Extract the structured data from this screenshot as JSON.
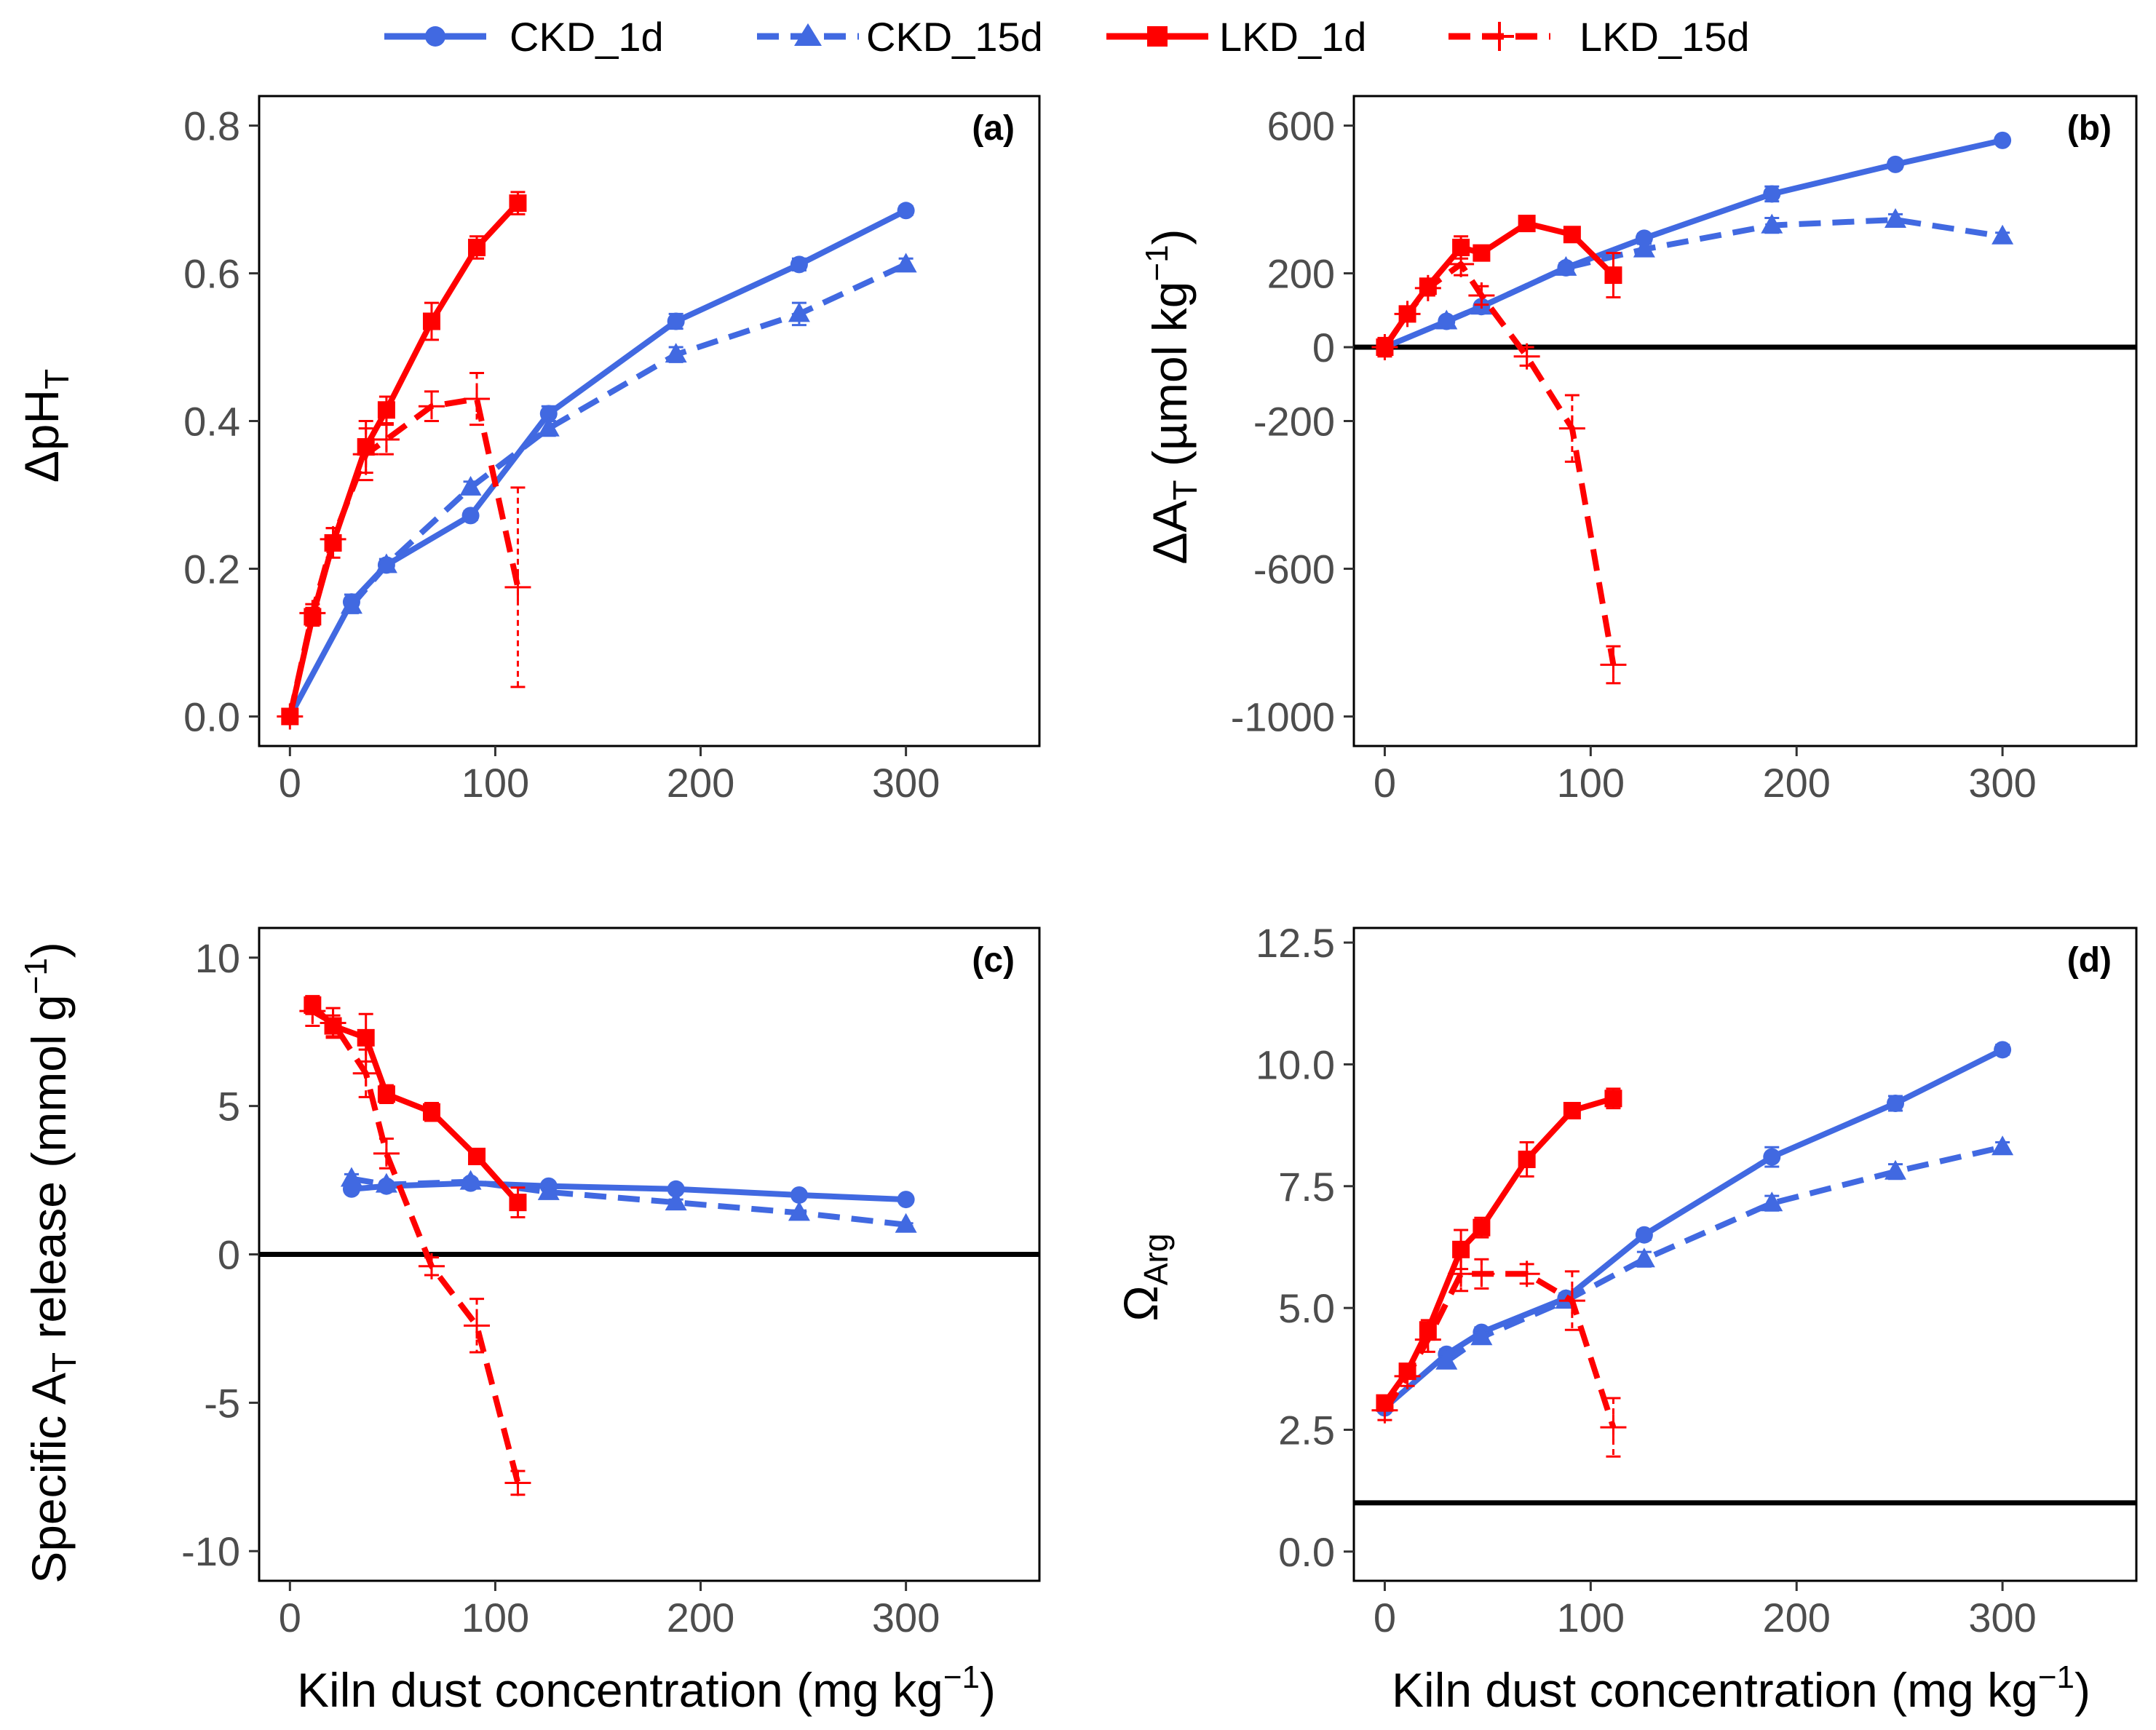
{
  "legend": {
    "entries": [
      {
        "key": "ckd1",
        "label": "CKD_1d"
      },
      {
        "key": "ckd15",
        "label": "CKD_15d"
      },
      {
        "key": "lkd1",
        "label": "LKD_1d"
      },
      {
        "key": "lkd15",
        "label": "LKD_15d"
      }
    ]
  },
  "colors": {
    "ckd": "#4169E1",
    "lkd": "#FF0000",
    "axis": "#000000",
    "tick_text": "#4d4d4d"
  },
  "x_axis_title": {
    "main": "Kiln dust concentration (mg kg",
    "sup": "−1",
    "close": ")"
  },
  "chart_data": [
    {
      "panel": "a",
      "type": "line",
      "tag": "(a)",
      "ylabel": "ΔpH_T",
      "xlim": [
        -15,
        365
      ],
      "ylim": [
        -0.04,
        0.84
      ],
      "xticks": [
        0,
        100,
        200,
        300
      ],
      "xtick_labels": [
        "0",
        "100",
        "200",
        "300"
      ],
      "yticks": [
        0.0,
        0.2,
        0.4,
        0.6,
        0.8
      ],
      "ytick_labels": [
        "0.0",
        "0.2",
        "0.4",
        "0.6",
        "0.8"
      ],
      "hline": null,
      "series": [
        {
          "name": "CKD_1d",
          "x": [
            0,
            30,
            47,
            88,
            126,
            188,
            248,
            300
          ],
          "y": [
            0.0,
            0.155,
            0.205,
            0.272,
            0.41,
            0.535,
            0.612,
            0.685
          ],
          "err": [
            0,
            0.01,
            0.008,
            0.006,
            0.01,
            0.01,
            0.008,
            0.006
          ]
        },
        {
          "name": "CKD_15d",
          "x": [
            30,
            47,
            88,
            126,
            188,
            248,
            300
          ],
          "y": [
            0.15,
            0.205,
            0.31,
            0.39,
            0.49,
            0.545,
            0.612
          ],
          "err": [
            0.01,
            0.008,
            0.008,
            0.01,
            0.01,
            0.015,
            0.008
          ]
        },
        {
          "name": "LKD_1d",
          "x": [
            0,
            11,
            21,
            37,
            47,
            69,
            91,
            111
          ],
          "y": [
            0.0,
            0.135,
            0.235,
            0.365,
            0.415,
            0.535,
            0.635,
            0.695
          ],
          "err": [
            0.01,
            0.012,
            0.02,
            0.035,
            0.018,
            0.025,
            0.015,
            0.015
          ]
        },
        {
          "name": "LKD_15d",
          "x": [
            0,
            11,
            21,
            37,
            47,
            69,
            91,
            111
          ],
          "y": [
            0.0,
            0.14,
            0.24,
            0.355,
            0.375,
            0.42,
            0.43,
            0.175
          ],
          "err": [
            0.01,
            0.012,
            0.015,
            0.035,
            0.02,
            0.02,
            0.035,
            0.135
          ]
        }
      ]
    },
    {
      "panel": "b",
      "type": "line",
      "tag": "(b)",
      "ylabel": "ΔA_T (µmol kg^−1)",
      "xlim": [
        -15,
        365
      ],
      "ylim": [
        -1080,
        680
      ],
      "xticks": [
        0,
        100,
        200,
        300
      ],
      "xtick_labels": [
        "0",
        "100",
        "200",
        "300"
      ],
      "yticks": [
        -1000,
        -600,
        -200,
        0,
        200,
        600
      ],
      "ytick_labels": [
        "-1000",
        "-600",
        "-200",
        "0",
        "200",
        "600"
      ],
      "hline": 0,
      "series": [
        {
          "name": "CKD_1d",
          "x": [
            0,
            30,
            47,
            88,
            126,
            188,
            248,
            300
          ],
          "y": [
            0,
            70,
            110,
            215,
            295,
            415,
            495,
            560
          ],
          "err": [
            0,
            10,
            10,
            12,
            12,
            20,
            12,
            10
          ]
        },
        {
          "name": "CKD_15d",
          "x": [
            30,
            47,
            88,
            126,
            188,
            248,
            300
          ],
          "y": [
            70,
            110,
            215,
            265,
            330,
            345,
            300
          ],
          "err": [
            10,
            10,
            12,
            15,
            20,
            15,
            10
          ]
        },
        {
          "name": "LKD_1d",
          "x": [
            0,
            11,
            21,
            37,
            47,
            69,
            91,
            111
          ],
          "y": [
            0,
            90,
            165,
            270,
            255,
            335,
            305,
            195
          ],
          "err": [
            15,
            20,
            20,
            30,
            20,
            20,
            20,
            60
          ]
        },
        {
          "name": "LKD_15d",
          "x": [
            0,
            11,
            21,
            37,
            47,
            69,
            91,
            111
          ],
          "y": [
            0,
            90,
            160,
            225,
            140,
            -25,
            -220,
            -860
          ],
          "err": [
            25,
            20,
            20,
            30,
            25,
            25,
            90,
            50
          ]
        }
      ]
    },
    {
      "panel": "c",
      "type": "line",
      "tag": "(c)",
      "ylabel": "Specific A_T release (mmol g^−1)",
      "xlim": [
        -15,
        365
      ],
      "ylim": [
        -11,
        11
      ],
      "xticks": [
        0,
        100,
        200,
        300
      ],
      "xtick_labels": [
        "0",
        "100",
        "200",
        "300"
      ],
      "yticks": [
        -10,
        -5,
        0,
        5,
        10
      ],
      "ytick_labels": [
        "-10",
        "-5",
        "0",
        "5",
        "10"
      ],
      "hline": 0,
      "series": [
        {
          "name": "CKD_1d",
          "x": [
            30,
            47,
            88,
            126,
            188,
            248,
            300
          ],
          "y": [
            2.2,
            2.3,
            2.4,
            2.3,
            2.2,
            2.0,
            1.85
          ],
          "err": [
            0.1,
            0.1,
            0.1,
            0.1,
            0.1,
            0.05,
            0.05
          ]
        },
        {
          "name": "CKD_15d",
          "x": [
            30,
            47,
            88,
            126,
            188,
            248,
            300
          ],
          "y": [
            2.55,
            2.35,
            2.45,
            2.1,
            1.75,
            1.4,
            1.0
          ],
          "err": [
            0.15,
            0.1,
            0.1,
            0.1,
            0.1,
            0.08,
            0.05
          ]
        },
        {
          "name": "LKD_1d",
          "x": [
            11,
            21,
            37,
            47,
            69,
            91,
            111
          ],
          "y": [
            8.4,
            7.7,
            7.3,
            5.4,
            4.8,
            3.3,
            1.75
          ],
          "err": [
            0.3,
            0.35,
            0.8,
            0.3,
            0.3,
            0.2,
            0.5
          ]
        },
        {
          "name": "LKD_15d",
          "x": [
            11,
            21,
            37,
            47,
            69,
            91,
            111
          ],
          "y": [
            8.2,
            7.8,
            6.1,
            3.4,
            -0.4,
            -2.4,
            -7.7
          ],
          "err": [
            0.5,
            0.5,
            0.8,
            0.5,
            0.3,
            0.9,
            0.4
          ]
        }
      ]
    },
    {
      "panel": "d",
      "type": "line",
      "tag": "(d)",
      "ylabel": "Ω_Arg",
      "xlim": [
        -15,
        365
      ],
      "ylim": [
        -0.6,
        12.8
      ],
      "xticks": [
        0,
        100,
        200,
        300
      ],
      "xtick_labels": [
        "0",
        "100",
        "200",
        "300"
      ],
      "yticks": [
        0.0,
        2.5,
        5.0,
        7.5,
        10.0,
        12.5
      ],
      "ytick_labels": [
        "0.0",
        "2.5",
        "5.0",
        "7.5",
        "10.0",
        "12.5"
      ],
      "hline": 1,
      "series": [
        {
          "name": "CKD_1d",
          "x": [
            0,
            30,
            47,
            88,
            126,
            188,
            248,
            300
          ],
          "y": [
            2.95,
            4.05,
            4.5,
            5.2,
            6.5,
            8.1,
            9.2,
            10.3
          ],
          "err": [
            0.05,
            0.1,
            0.1,
            0.1,
            0.1,
            0.2,
            0.15,
            0.1
          ]
        },
        {
          "name": "CKD_15d",
          "x": [
            30,
            47,
            88,
            126,
            188,
            248,
            300
          ],
          "y": [
            3.9,
            4.4,
            5.15,
            6.0,
            7.15,
            7.8,
            8.3
          ],
          "err": [
            0.1,
            0.1,
            0.1,
            0.15,
            0.15,
            0.15,
            0.1
          ]
        },
        {
          "name": "LKD_1d",
          "x": [
            0,
            11,
            21,
            37,
            47,
            69,
            91,
            111
          ],
          "y": [
            3.05,
            3.7,
            4.55,
            6.2,
            6.65,
            8.05,
            9.05,
            9.3
          ],
          "err": [
            0.1,
            0.15,
            0.2,
            0.4,
            0.2,
            0.35,
            0.15,
            0.2
          ]
        },
        {
          "name": "LKD_15d",
          "x": [
            0,
            11,
            21,
            37,
            47,
            69,
            91,
            111
          ],
          "y": [
            2.9,
            3.6,
            4.35,
            5.7,
            5.7,
            5.7,
            5.15,
            2.55
          ],
          "err": [
            0.2,
            0.2,
            0.25,
            0.35,
            0.3,
            0.2,
            0.6,
            0.6
          ]
        }
      ]
    }
  ]
}
